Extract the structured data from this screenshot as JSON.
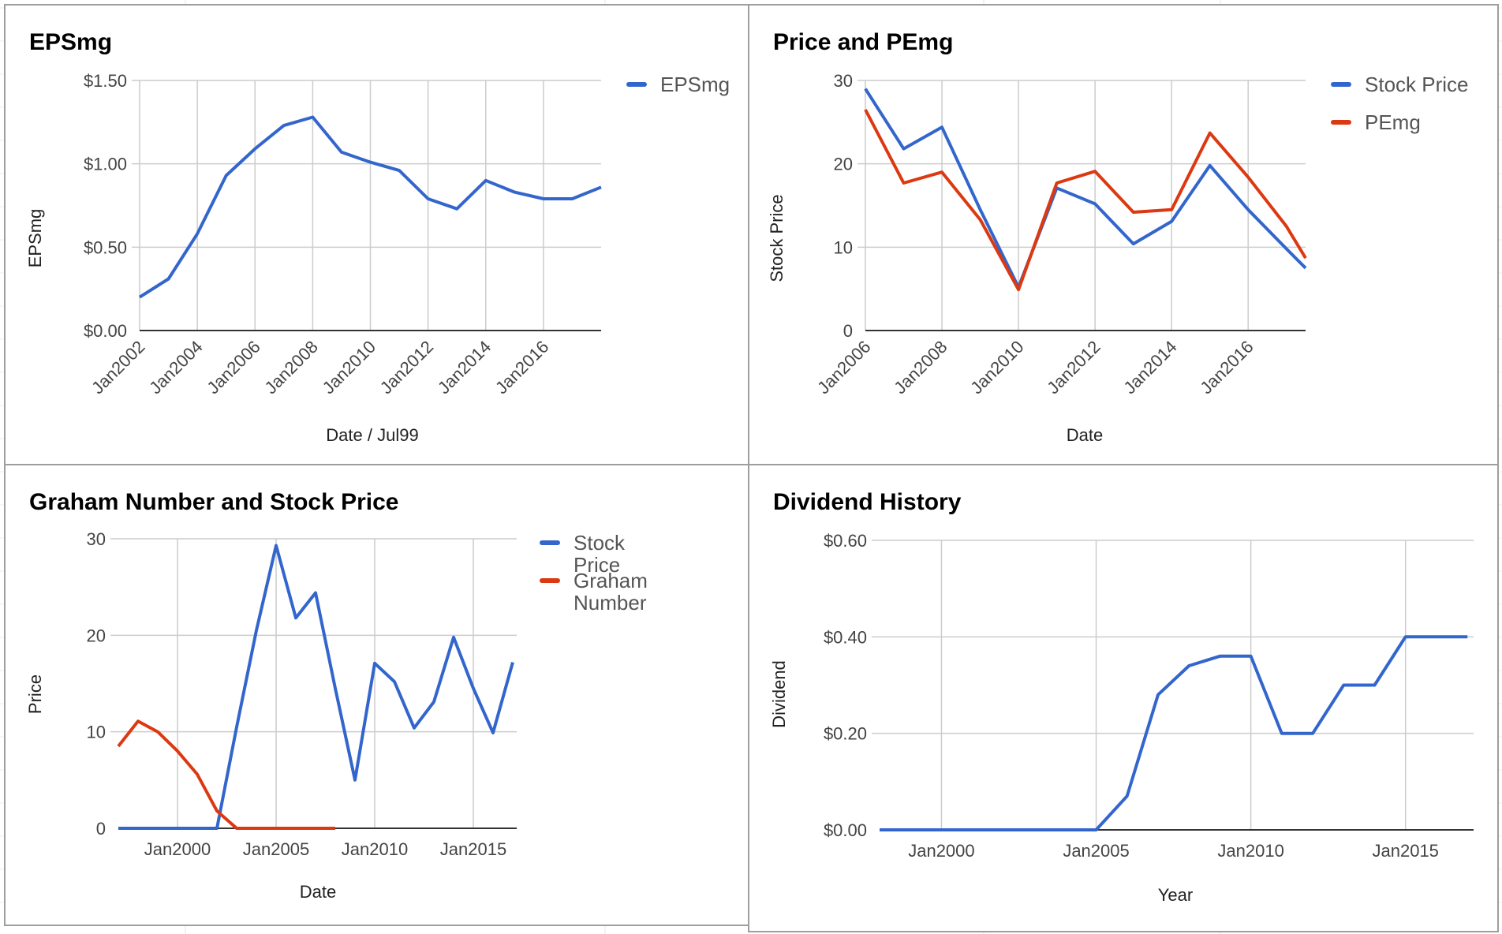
{
  "colors": {
    "blue": "#3366cc",
    "red": "#dc3912",
    "grid": "#cccccc",
    "axis": "#333333",
    "text": "#444444",
    "panel_border": "#9e9e9e"
  },
  "chart_data": [
    {
      "id": "eps",
      "type": "line",
      "title": "EPSmg",
      "xlabel": "Date / Jul99",
      "ylabel": "EPSmg",
      "x_ticks": [
        "Jan2002",
        "Jan2004",
        "Jan2006",
        "Jan2008",
        "Jan2010",
        "Jan2012",
        "Jan2014",
        "Jan2016"
      ],
      "y_ticks": [
        "$0.00",
        "$0.50",
        "$1.00",
        "$1.50"
      ],
      "ylim": [
        0,
        1.5
      ],
      "legend_position": "right",
      "grid": true,
      "series": [
        {
          "name": "EPSmg",
          "color": "#3366cc",
          "x": [
            "Jan2002",
            "Jan2003",
            "Jan2004",
            "Jan2005",
            "Jan2006",
            "Jan2007",
            "Jan2008",
            "Jan2009",
            "Jan2010",
            "Jan2011",
            "Jan2012",
            "Jan2013",
            "Jan2014",
            "Jan2015",
            "Jan2016",
            "Jan2017",
            "Jan2018"
          ],
          "values": [
            0.2,
            0.31,
            0.58,
            0.93,
            1.09,
            1.23,
            1.28,
            1.07,
            1.01,
            0.96,
            0.79,
            0.73,
            0.9,
            0.83,
            0.79,
            0.79,
            0.86
          ]
        }
      ]
    },
    {
      "id": "pe",
      "type": "line",
      "title": "Price and PEmg",
      "xlabel": "Date",
      "ylabel": "Stock Price",
      "x_ticks": [
        "Jan2006",
        "Jan2008",
        "Jan2010",
        "Jan2012",
        "Jan2014",
        "Jan2016"
      ],
      "y_ticks": [
        "0",
        "10",
        "20",
        "30"
      ],
      "ylim": [
        0,
        30
      ],
      "legend_position": "right",
      "grid": true,
      "series": [
        {
          "name": "Stock Price",
          "color": "#3366cc",
          "x": [
            "Jan2006",
            "Jan2007",
            "Jan2008",
            "Jan2009",
            "Jan2010",
            "Jan2011",
            "Jan2012",
            "Jan2013",
            "Jan2014",
            "Jan2015",
            "Jan2016",
            "Jan2017",
            "Jul2017"
          ],
          "values": [
            29.0,
            21.8,
            24.4,
            14.5,
            5.2,
            17.1,
            15.2,
            10.4,
            13.1,
            19.8,
            14.5,
            9.8,
            7.5
          ]
        },
        {
          "name": "PEmg",
          "color": "#dc3912",
          "x": [
            "Jan2006",
            "Jan2007",
            "Jan2008",
            "Jan2009",
            "Jan2010",
            "Jan2011",
            "Jan2012",
            "Jan2013",
            "Jan2014",
            "Jan2015",
            "Jan2016",
            "Jan2017",
            "Jul2017"
          ],
          "values": [
            26.5,
            17.7,
            19.0,
            13.3,
            4.9,
            17.7,
            19.1,
            14.2,
            14.5,
            23.7,
            18.4,
            12.5,
            8.7
          ]
        }
      ]
    },
    {
      "id": "graham",
      "type": "line",
      "title": "Graham Number and Stock Price",
      "xlabel": "Date",
      "ylabel": "Price",
      "x_ticks": [
        "Jan2000",
        "Jan2005",
        "Jan2010",
        "Jan2015"
      ],
      "y_ticks": [
        "0",
        "10",
        "20",
        "30"
      ],
      "ylim": [
        0,
        30
      ],
      "legend_position": "right",
      "grid": true,
      "series": [
        {
          "name": "Stock Price",
          "color": "#3366cc",
          "x": [
            "Jan1997",
            "Jan1998",
            "Jan1999",
            "Jan2000",
            "Jan2001",
            "Jan2002",
            "Jan2003",
            "Jan2004",
            "Jan2005",
            "Jan2006",
            "Jan2007",
            "Jan2008",
            "Jan2009",
            "Jan2010",
            "Jan2011",
            "Jan2012",
            "Jan2013",
            "Jan2014",
            "Jan2015",
            "Jan2016",
            "Jan2017"
          ],
          "values": [
            0,
            0,
            0,
            0,
            0,
            0,
            10.5,
            20.5,
            29.3,
            21.8,
            24.4,
            14.5,
            5.0,
            17.1,
            15.2,
            10.4,
            13.1,
            19.8,
            14.5,
            9.9,
            17.2
          ]
        },
        {
          "name": "Graham Number",
          "color": "#dc3912",
          "x": [
            "Jan1997",
            "Jan1998",
            "Jan1999",
            "Jan2000",
            "Jan2001",
            "Jan2002",
            "Jan2003",
            "Jan2004",
            "Jan2005",
            "Jan2006",
            "Jan2007",
            "Jan2008"
          ],
          "values": [
            8.5,
            11.1,
            10.0,
            8.0,
            5.6,
            1.8,
            0,
            0,
            0,
            0,
            0,
            0
          ]
        }
      ]
    },
    {
      "id": "div",
      "type": "line",
      "title": "Dividend History",
      "xlabel": "Year",
      "ylabel": "Dividend",
      "x_ticks": [
        "Jan2000",
        "Jan2005",
        "Jan2010",
        "Jan2015"
      ],
      "y_ticks": [
        "$0.00",
        "$0.20",
        "$0.40",
        "$0.60"
      ],
      "ylim": [
        0,
        0.6
      ],
      "legend_position": "none",
      "grid": true,
      "series": [
        {
          "name": "",
          "color": "#3366cc",
          "x": [
            "1998",
            "1999",
            "2000",
            "2001",
            "2002",
            "2003",
            "2004",
            "2005",
            "2006",
            "2007",
            "2008",
            "2009",
            "2010",
            "2011",
            "2012",
            "2013",
            "2014",
            "2015",
            "2016",
            "2017"
          ],
          "values": [
            0,
            0,
            0,
            0,
            0,
            0,
            0,
            0,
            0.07,
            0.28,
            0.34,
            0.36,
            0.36,
            0.2,
            0.2,
            0.3,
            0.3,
            0.4,
            0.4,
            0.4
          ]
        }
      ]
    }
  ]
}
